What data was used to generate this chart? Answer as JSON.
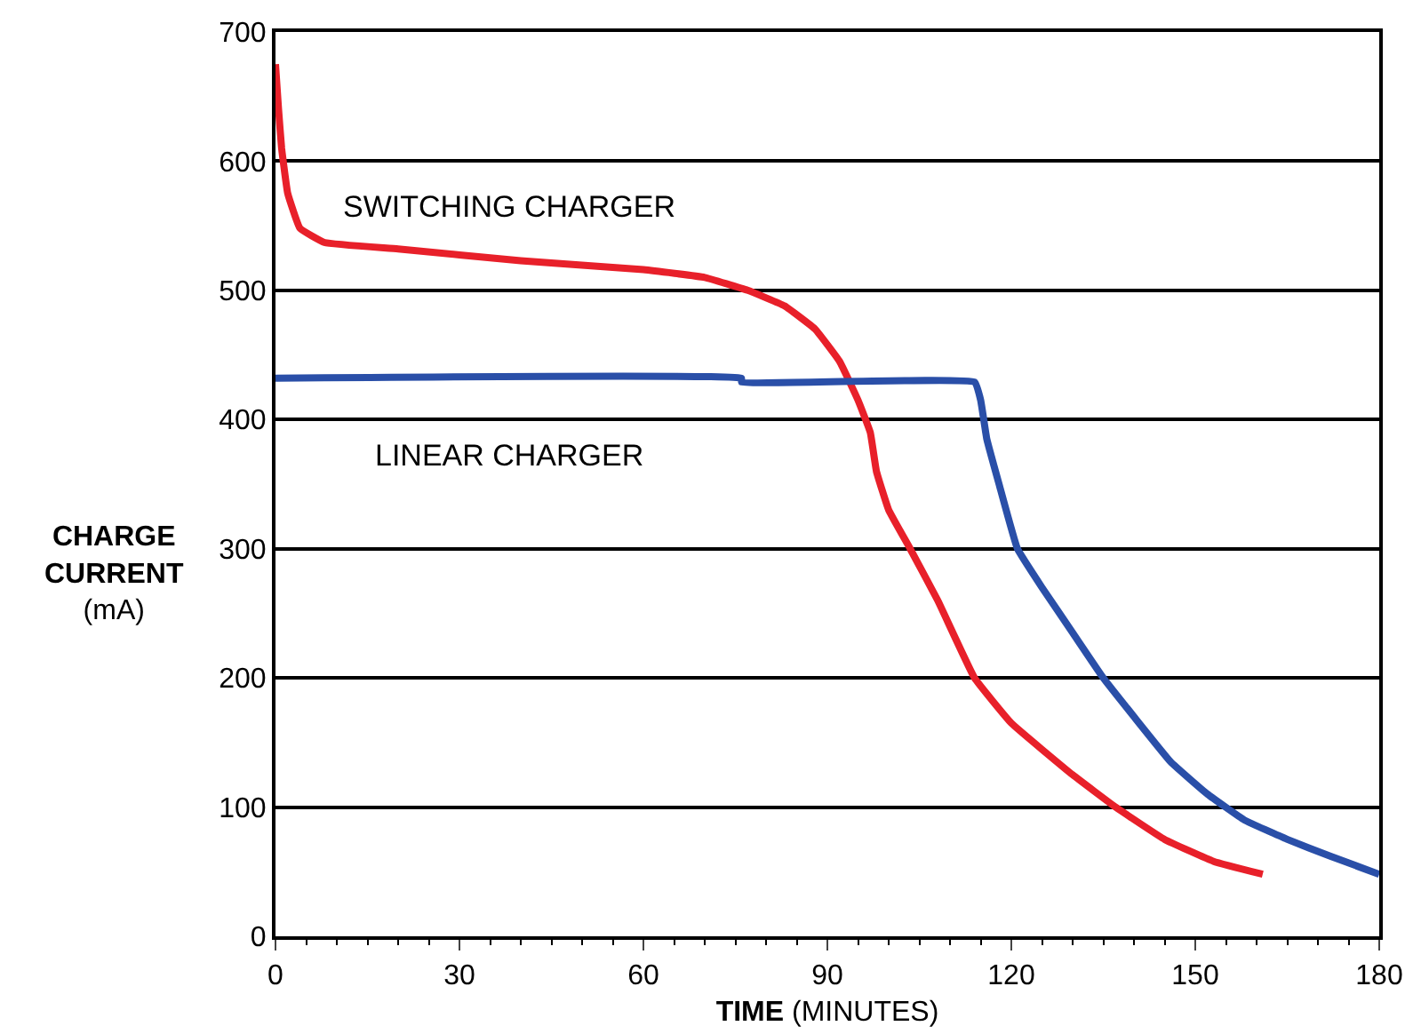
{
  "chart_data": {
    "type": "line",
    "xlabel": "TIME (MINUTES)",
    "ylabel": "CHARGE CURRENT (mA)",
    "xlim": [
      0,
      180
    ],
    "xticks": [
      0,
      30,
      60,
      90,
      120,
      150,
      180
    ],
    "ylim": [
      0,
      700
    ],
    "yticks": [
      0,
      100,
      200,
      300,
      400,
      500,
      600,
      700
    ],
    "grid": "y",
    "legend": false,
    "marker": "none",
    "line_style": "solid",
    "series": [
      {
        "name": "SWITCHING CHARGER",
        "color": "#e8202a",
        "x": [
          0,
          0.5,
          1,
          2,
          4,
          8,
          20,
          40,
          60,
          70,
          77,
          83,
          88,
          92,
          95,
          97,
          98,
          100,
          103.5,
          108,
          114,
          120,
          130,
          137,
          145,
          153,
          161
        ],
        "values": [
          675,
          640,
          610,
          575,
          548,
          537,
          532,
          523,
          516,
          510,
          500,
          488,
          470,
          445,
          415,
          390,
          360,
          330,
          300,
          260,
          200,
          165,
          125,
          100,
          75,
          58,
          48
        ]
      },
      {
        "name": "LINEAR CHARGER",
        "color": "#2a4fa8",
        "x": [
          0,
          76,
          76,
          114,
          115,
          116,
          118,
          121,
          125,
          130,
          135,
          140,
          146,
          152,
          158,
          165,
          172,
          180
        ],
        "values": [
          432,
          432,
          429,
          429,
          415,
          385,
          350,
          300,
          270,
          235,
          200,
          170,
          135,
          110,
          90,
          75,
          62,
          48
        ]
      }
    ]
  }
}
